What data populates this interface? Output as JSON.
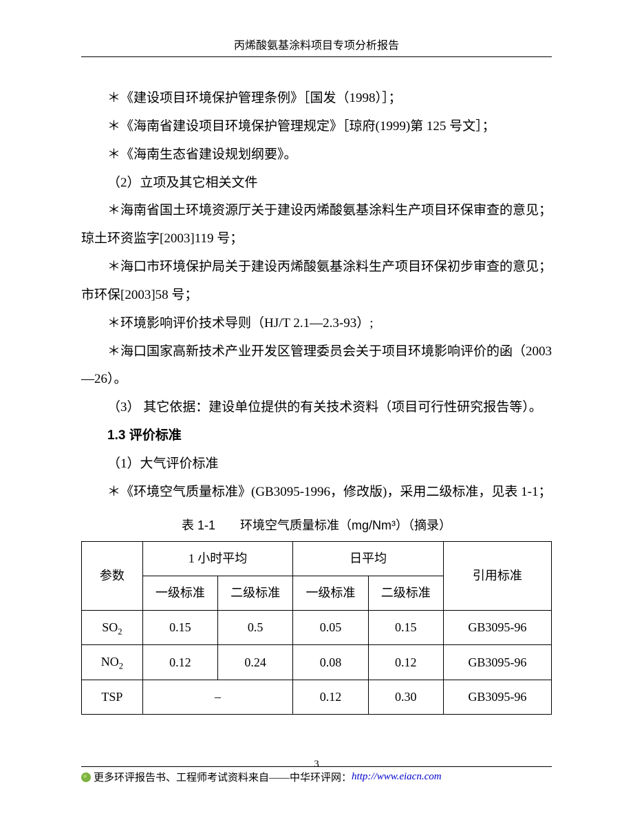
{
  "header": {
    "title": "丙烯酸氨基涂料项目专项分析报告"
  },
  "paragraphs": {
    "p1": "＊《建设项目环境保护管理条例》［国发（1998）］；",
    "p2": "＊《海南省建设项目环境保护管理规定》［琼府(1999)第 125 号文］；",
    "p3": "＊《海南生态省建设规划纲要》。",
    "p4": "（2）立项及其它相关文件",
    "p5": "＊海南省国土环境资源厅关于建设丙烯酸氨基涂料生产项目环保审查的意见；　琼土环资监字[2003]119 号；",
    "p6": "＊海口市环境保护局关于建设丙烯酸氨基涂料生产项目环保初步审查的意见；　市环保[2003]58 号；",
    "p7": "＊环境影响评价技术导则（HJ/T 2.1—2.3-93）;",
    "p8": "＊海口国家高新技术产业开发区管理委员会关于项目环境影响评价的函（2003—26）。",
    "p9": "（3） 其它依据：建设单位提供的有关技术资料（项目可行性研究报告等）。",
    "heading": "1.3 评价标准",
    "p10": "（1）大气评价标准",
    "p11": "＊《环境空气质量标准》(GB3095-1996，修改版)，采用二级标准，见表 1-1；"
  },
  "table": {
    "caption": "表 1-1　　环境空气质量标准（mg/Nm³）（摘录）",
    "headers": {
      "param": "参数",
      "hour": "1 小时平均",
      "day": "日平均",
      "ref": "引用标准",
      "lvl1": "一级标准",
      "lvl2": "二级标准"
    },
    "rows": [
      {
        "param_html": "SO<sub>2</sub>",
        "h1": "0.15",
        "h2": "0.5",
        "d1": "0.05",
        "d2": "0.15",
        "ref": "GB3095-96"
      },
      {
        "param_html": "NO<sub>2</sub>",
        "h1": "0.12",
        "h2": "0.24",
        "d1": "0.08",
        "d2": "0.12",
        "ref": "GB3095-96"
      },
      {
        "param_html": "TSP",
        "h1": "–",
        "h2": "",
        "d1": "0.12",
        "d2": "0.30",
        "ref": "GB3095-96"
      }
    ]
  },
  "footer": {
    "text1": "更多环评报告书、工程师考试资料来自——",
    "text2": "中华环评网：",
    "url": "http://www.eiacn.com",
    "pagenum": "3"
  }
}
